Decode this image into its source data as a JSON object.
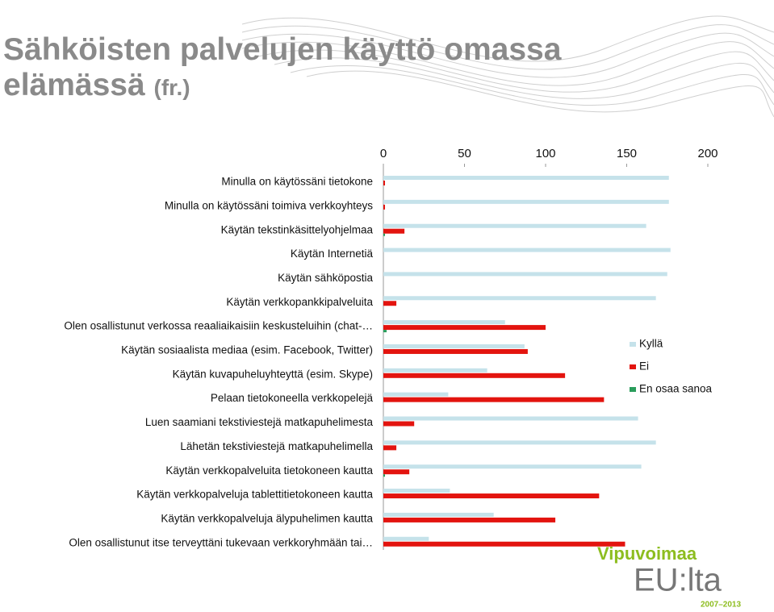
{
  "chart_data": {
    "type": "hbar",
    "title": "Sähköisten palvelujen käyttö omassa elämässä",
    "title_note": "(fr.)",
    "categories": [
      "Minulla on käytössäni tietokone",
      "Minulla on käytössäni toimiva verkkoyhteys",
      "Käytän tekstinkäsittelyohjelmaa",
      "Käytän Internetiä",
      "Käytän sähköpostia",
      "Käytän verkkopankkipalveluita",
      "Olen osallistunut verkossa reaaliaikaisiin keskusteluihin (chat-…",
      "Käytän sosiaalista mediaa (esim. Facebook, Twitter)",
      "Käytän kuvapuheluyhteyttä (esim. Skype)",
      "Pelaan tietokoneella verkkopelejä",
      "Luen saamiani tekstiviestejä matkapuhelimesta",
      "Lähetän tekstiviestejä matkapuhelimella",
      "Käytän verkkopalveluita tietokoneen kautta",
      "Käytän verkkopalveluja tablettitietokoneen kautta",
      "Käytän verkkopalveluja älypuhelimen kautta",
      "Olen osallistunut itse terveyttäni tukevaan verkkoryhmään tai…"
    ],
    "series": [
      {
        "name": "Kyllä",
        "color": "#c5e2ea",
        "values": [
          176,
          176,
          162,
          177,
          175,
          168,
          75,
          87,
          64,
          40,
          157,
          168,
          159,
          41,
          68,
          28
        ]
      },
      {
        "name": "Ei",
        "color": "#e3140f",
        "values": [
          1,
          1,
          13,
          0,
          0,
          8,
          100,
          89,
          112,
          136,
          19,
          8,
          16,
          133,
          106,
          149
        ]
      },
      {
        "name": "En osaa sanoa",
        "color": "#2a9d5c",
        "values": [
          0,
          0,
          1,
          0,
          0,
          0,
          2,
          0,
          0,
          0,
          0,
          0,
          1,
          0,
          0,
          0
        ]
      }
    ],
    "xlim": [
      0,
      200
    ],
    "xticks": [
      0,
      50,
      100,
      150,
      200
    ],
    "legend": "right"
  },
  "logo": {
    "brand": "Vipuvoimaa",
    "name": "EU:lta",
    "years": "2007–2013"
  }
}
